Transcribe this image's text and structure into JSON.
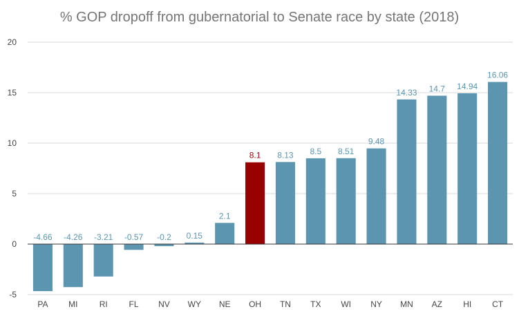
{
  "chart_data": {
    "type": "bar",
    "title": "% GOP dropoff from gubernatorial to Senate race by state (2018)",
    "xlabel": "",
    "ylabel": "",
    "ylim": [
      -5,
      20
    ],
    "yticks": [
      -5,
      0,
      5,
      10,
      15,
      20
    ],
    "grid": true,
    "legend": "none",
    "categories": [
      "PA",
      "MI",
      "RI",
      "FL",
      "NV",
      "WY",
      "NE",
      "OH",
      "TN",
      "TX",
      "WI",
      "NY",
      "MN",
      "AZ",
      "HI",
      "CT"
    ],
    "values": [
      -4.66,
      -4.26,
      -3.21,
      -0.57,
      -0.2,
      0.15,
      2.1,
      8.1,
      8.13,
      8.5,
      8.51,
      9.48,
      14.33,
      14.7,
      14.94,
      16.06
    ],
    "data_labels": [
      "-4.66",
      "-4.26",
      "-3.21",
      "-0.57",
      "-0.2",
      "0.15",
      "2.1",
      "8.1",
      "8.13",
      "8.5",
      "8.51",
      "9.48",
      "14.33",
      "14.7",
      "14.94",
      "16.06"
    ],
    "highlight": "OH",
    "colors": {
      "bar": "#5b95b0",
      "highlight_bar": "#990000",
      "label": "#5b95b0",
      "highlight_label": "#990000"
    }
  }
}
